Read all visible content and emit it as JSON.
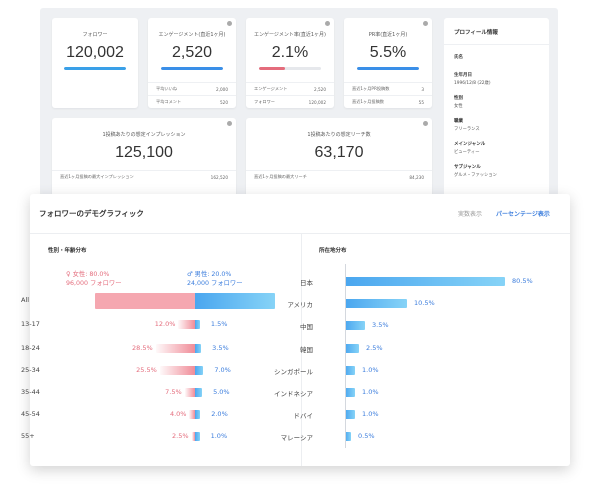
{
  "overview": {
    "followers": {
      "label": "フォロワー",
      "value": "120,002",
      "fill": 0.75
    },
    "engagement": {
      "label": "エンゲージメント(直近1ヶ月)",
      "value": "2,520",
      "fill": 0.6,
      "rows": [
        {
          "label": "平均いいね",
          "value": "2,000"
        },
        {
          "label": "平均コメント",
          "value": "520"
        }
      ]
    },
    "engagement_rate": {
      "label": "エンゲージメント率(直近1ヶ月)",
      "value": "2.1%",
      "fill": 0.4,
      "rows": [
        {
          "label": "エンゲージメント",
          "value": "2,520"
        },
        {
          "label": "フォロワー",
          "value": "120,002"
        }
      ]
    },
    "pr_rate": {
      "label": "PR率(直近1ヶ月)",
      "value": "5.5%",
      "fill": 0.55,
      "rows": [
        {
          "label": "直近1ヶ月PR投稿数",
          "value": "3"
        },
        {
          "label": "直近1ヶ月投稿数",
          "value": "55"
        }
      ]
    },
    "impressions": {
      "label": "1投稿あたりの想定インプレッション",
      "value": "125,100",
      "rows": [
        {
          "label": "直近1ヶ月投稿の最大インプレッション",
          "value": "162,520"
        }
      ]
    },
    "reach": {
      "label": "1投稿あたりの想定リーチ数",
      "value": "63,170",
      "rows": [
        {
          "label": "直近1ヶ月投稿の最大リーチ",
          "value": "84,230"
        }
      ]
    }
  },
  "profile": {
    "title": "プロフィール情報",
    "fields": [
      {
        "label": "氏名",
        "value": ""
      },
      {
        "label": "生年月日",
        "value": "1996/12/8 (22歳)"
      },
      {
        "label": "性別",
        "value": "女性"
      },
      {
        "label": "職業",
        "value": "フリーランス"
      },
      {
        "label": "メインジャンル",
        "value": "ビューティー"
      },
      {
        "label": "サブジャンル",
        "value": "グルメ・ファッション"
      }
    ]
  },
  "demographics": {
    "title": "フォロワーのデモグラフィック",
    "toggle_actual": "実数表示",
    "toggle_percent": "パーセンテージ表示",
    "gender_age_title": "性別・年齢分布",
    "region_title": "所在地分布",
    "legend_female": "♀ 女性: 80.0%",
    "legend_female_count": "96,000 フォロワー",
    "legend_male": "♂ 男性: 20.0%",
    "legend_male_count": "24,000 フォロワー",
    "colors": {
      "female": "#f08c98",
      "male": "#4aa6ef",
      "accent": "#3b7ddd"
    }
  },
  "chart_data": [
    {
      "type": "bar",
      "title": "性別・年齢分布",
      "categories": [
        "All",
        "13-17",
        "18-24",
        "25-34",
        "35-44",
        "45-54",
        "55+"
      ],
      "series": [
        {
          "name": "女性",
          "values": [
            80.0,
            12.0,
            28.5,
            25.5,
            7.5,
            4.0,
            2.5
          ],
          "labels": [
            "",
            "12.0%",
            "28.5%",
            "25.5%",
            "7.5%",
            "4.0%",
            "2.5%"
          ]
        },
        {
          "name": "男性",
          "values": [
            20.0,
            1.5,
            3.5,
            7.0,
            5.0,
            2.0,
            1.0
          ],
          "labels": [
            "",
            "1.5%",
            "3.5%",
            "7.0%",
            "5.0%",
            "2.0%",
            "1.0%"
          ]
        }
      ]
    },
    {
      "type": "bar",
      "title": "所在地分布",
      "categories": [
        "日本",
        "アメリカ",
        "中国",
        "韓国",
        "シンガポール",
        "インドネシア",
        "ドバイ",
        "マレーシア"
      ],
      "values": [
        80.5,
        10.5,
        3.5,
        2.5,
        1.0,
        1.0,
        1.0,
        0.5
      ],
      "labels": [
        "80.5%",
        "10.5%",
        "3.5%",
        "2.5%",
        "1.0%",
        "1.0%",
        "1.0%",
        "0.5%"
      ]
    }
  ]
}
